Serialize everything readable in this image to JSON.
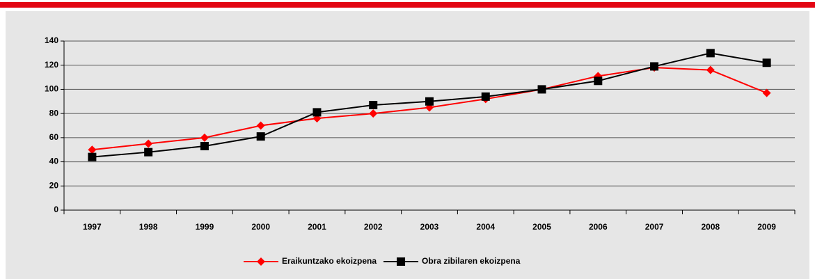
{
  "chart_data": {
    "type": "line",
    "categories": [
      "1997",
      "1998",
      "1999",
      "2000",
      "2001",
      "2002",
      "2003",
      "2004",
      "2005",
      "2006",
      "2007",
      "2008",
      "2009"
    ],
    "series": [
      {
        "name": "Eraikuntzako ekoizpena",
        "color": "#ff0000",
        "marker": "diamond",
        "values": [
          50,
          55,
          60,
          70,
          76,
          80,
          85,
          92,
          100,
          111,
          118,
          116,
          97
        ]
      },
      {
        "name": "Obra zibilaren ekoizpena",
        "color": "#000000",
        "marker": "square",
        "values": [
          44,
          48,
          53,
          61,
          81,
          87,
          90,
          94,
          100,
          107,
          119,
          130,
          122
        ]
      }
    ],
    "ylim": [
      0,
      140
    ],
    "yticks": [
      0,
      20,
      40,
      60,
      80,
      100,
      120,
      140
    ],
    "grid": true,
    "legend": "bottom"
  }
}
